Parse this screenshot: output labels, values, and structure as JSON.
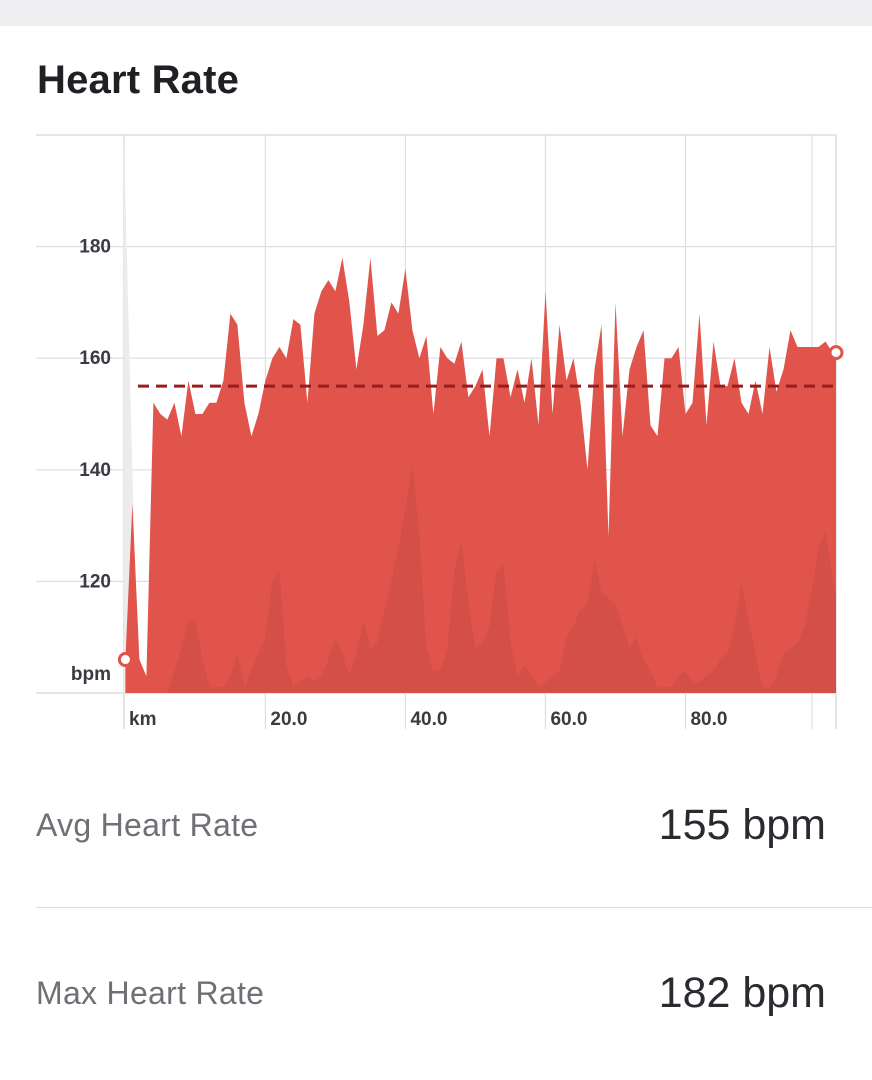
{
  "title": "Heart Rate",
  "stats": [
    {
      "label": "Avg Heart Rate",
      "value": "155 bpm"
    },
    {
      "label": "Max Heart Rate",
      "value": "182 bpm"
    }
  ],
  "chart_data": {
    "type": "area",
    "ylabel": "bpm",
    "xlabel": "km",
    "ylim": [
      100,
      200
    ],
    "xlim": [
      -0.2,
      101.5
    ],
    "y_ticks": [
      120,
      140,
      160,
      180
    ],
    "y_tick_labels": [
      "120",
      "140",
      "160",
      "180"
    ],
    "x_ticks": [
      20,
      40,
      60,
      80
    ],
    "x_tick_labels": [
      "20.0",
      "40.0",
      "60.0",
      "80.0"
    ],
    "average": 155,
    "grid": true,
    "colors": {
      "area": "#e0544c",
      "elevation_shade": "#c94a43",
      "average_line": "#9b1c1c",
      "marker": "#e0544c",
      "grid": "#dedee2"
    },
    "series": [
      {
        "x": [
          0,
          1,
          2,
          3,
          4,
          5,
          6,
          7,
          8,
          9,
          10,
          11,
          12,
          13,
          14,
          15,
          16,
          17,
          18,
          19,
          20,
          21,
          22,
          23,
          24,
          25,
          26,
          27,
          28,
          29,
          30,
          31,
          32,
          33,
          34,
          35,
          36,
          37,
          38,
          39,
          40,
          41,
          42,
          43,
          44,
          45,
          46,
          47,
          48,
          49,
          50,
          51,
          52,
          53,
          54,
          55,
          56,
          57,
          58,
          59,
          60,
          61,
          62,
          63,
          64,
          65,
          66,
          67,
          68,
          69,
          70,
          71,
          72,
          73,
          74,
          75,
          76,
          77,
          78,
          79,
          80,
          81,
          82,
          83,
          84,
          85,
          86,
          87,
          88,
          89,
          90,
          91,
          92,
          93,
          94,
          95,
          96,
          97,
          98,
          99,
          100,
          101,
          101.5
        ],
        "y": [
          106,
          134,
          106,
          103,
          152,
          150,
          149,
          152,
          146,
          156,
          150,
          150,
          152,
          152,
          156,
          168,
          166,
          152,
          146,
          150,
          156,
          160,
          162,
          160,
          167,
          166,
          152,
          168,
          172,
          174,
          172,
          178,
          170,
          158,
          166,
          178,
          164,
          165,
          170,
          168,
          176,
          165,
          160,
          164,
          150,
          162,
          160,
          159,
          163,
          153,
          155,
          158,
          146,
          160,
          160,
          153,
          158,
          152,
          160,
          148,
          172,
          150,
          166,
          156,
          160,
          152,
          140,
          158,
          166,
          128,
          170,
          146,
          158,
          162,
          165,
          148,
          146,
          160,
          160,
          162,
          150,
          152,
          168,
          148,
          163,
          155,
          155,
          160,
          152,
          150,
          156,
          150,
          162,
          154,
          158,
          165,
          162,
          162,
          162,
          162,
          163,
          161,
          161
        ]
      }
    ],
    "elevation_backdrop": [
      100,
      100,
      100,
      100,
      100,
      100,
      100,
      104,
      108,
      113,
      113,
      106,
      101,
      101,
      101,
      103,
      107,
      101,
      104,
      107,
      110,
      120,
      122,
      105,
      101,
      102,
      103,
      102,
      103,
      106,
      110,
      107,
      103,
      107,
      113,
      108,
      109,
      115,
      120,
      126,
      133,
      141,
      128,
      108,
      104,
      104,
      108,
      122,
      127,
      116,
      108,
      109,
      112,
      122,
      123,
      109,
      103,
      105,
      103,
      101,
      102,
      103,
      104,
      110,
      112,
      115,
      116,
      124,
      118,
      117,
      116,
      112,
      108,
      110,
      106,
      104,
      101,
      101,
      101,
      103,
      104,
      102,
      102,
      103,
      104,
      106,
      107,
      112,
      120,
      113,
      107,
      101,
      101,
      103,
      107,
      108,
      109,
      112,
      118,
      126,
      129,
      121,
      117
    ]
  }
}
